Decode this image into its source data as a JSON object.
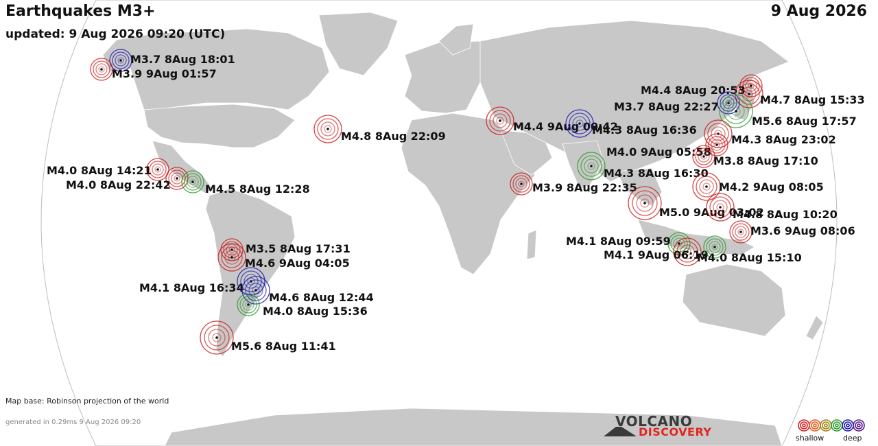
{
  "header": {
    "title": "Earthquakes M3+",
    "updated": "updated:  9 Aug 2026 09:20 (UTC)",
    "date": "9 Aug 2026"
  },
  "footer": {
    "map_base": "Map base: Robinson projection of the world",
    "generated": "generated in 0.29ms 9 Aug 2026 09:20",
    "logo_top": "VOLCANO",
    "logo_bottom": "DISCOVERY"
  },
  "legend": {
    "shallow": "shallow",
    "deep": "deep",
    "colors": [
      "#d42020",
      "#e05818",
      "#a08010",
      "#2a9a2a",
      "#1a1ab0",
      "#5a1a8a"
    ]
  },
  "colors": {
    "ocean": "#ffffff",
    "land": "#c8c8c8",
    "outline": "#bdbdbd"
  },
  "quakes": [
    {
      "label": "M3.7 8Aug 18:01",
      "depth": "deep"
    },
    {
      "label": "M3.9 9Aug 01:57",
      "depth": "shallow"
    },
    {
      "label": "M4.8 8Aug 22:09",
      "depth": "shallow"
    },
    {
      "label": "M4.4 9Aug 00:42",
      "depth": "shallow"
    },
    {
      "label": "M4.3 8Aug 16:36",
      "depth": "deep"
    },
    {
      "label": "M4.0 8Aug 14:21",
      "depth": "shallow"
    },
    {
      "label": "M4.0 8Aug 22:42",
      "depth": "shallow"
    },
    {
      "label": "M4.5 8Aug 12:28",
      "depth": "intermediate"
    },
    {
      "label": "M3.9 8Aug 22:35",
      "depth": "shallow"
    },
    {
      "label": "M4.3 8Aug 16:30",
      "depth": "intermediate"
    },
    {
      "label": "M3.5 8Aug 17:31",
      "depth": "shallow"
    },
    {
      "label": "M4.6 9Aug 04:05",
      "depth": "shallow"
    },
    {
      "label": "M4.1 8Aug 16:34",
      "depth": "deep"
    },
    {
      "label": "M4.6 8Aug 12:44",
      "depth": "deep"
    },
    {
      "label": "M4.0 8Aug 15:36",
      "depth": "intermediate"
    },
    {
      "label": "M5.6 8Aug 11:41",
      "depth": "shallow"
    },
    {
      "label": "M4.4 8Aug 20:53",
      "depth": "shallow"
    },
    {
      "label": "M4.7 8Aug 15:33",
      "depth": "shallow"
    },
    {
      "label": "M3.7 8Aug 22:27",
      "depth": "deep"
    },
    {
      "label": "M5.6 8Aug 17:57",
      "depth": "intermediate"
    },
    {
      "label": "M4.3 8Aug 23:02",
      "depth": "shallow"
    },
    {
      "label": "M4.0 9Aug 05:58",
      "depth": "shallow"
    },
    {
      "label": "M3.8 8Aug 17:10",
      "depth": "shallow"
    },
    {
      "label": "M4.2 9Aug 08:05",
      "depth": "shallow"
    },
    {
      "label": "M5.0 9Aug 03:02",
      "depth": "shallow"
    },
    {
      "label": "M4.8 8Aug 10:20",
      "depth": "shallow"
    },
    {
      "label": "M3.6 9Aug 08:06",
      "depth": "shallow"
    },
    {
      "label": "M4.1 8Aug 09:59",
      "depth": "intermediate"
    },
    {
      "label": "M4.1 9Aug 06:19",
      "depth": "shallow"
    },
    {
      "label": "M4.0 8Aug 15:10",
      "depth": "intermediate"
    }
  ]
}
